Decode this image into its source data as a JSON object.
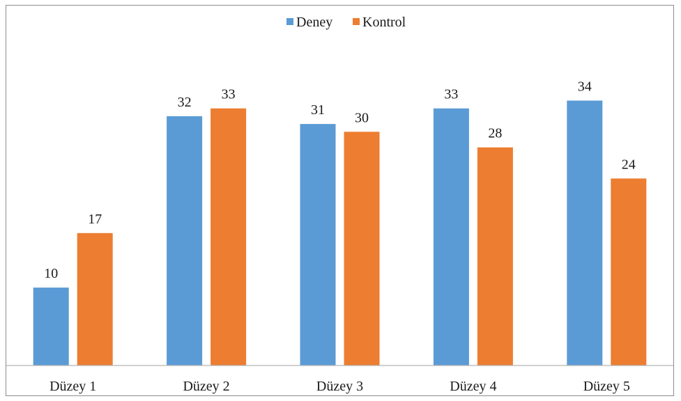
{
  "chart_data": {
    "type": "bar",
    "categories": [
      "Düzey 1",
      "Düzey 2",
      "Düzey 3",
      "Düzey 4",
      "Düzey 5"
    ],
    "series": [
      {
        "name": "Deney",
        "color": "#5b9bd5",
        "values": [
          10,
          32,
          31,
          33,
          34
        ]
      },
      {
        "name": "Kontrol",
        "color": "#ed7d31",
        "values": [
          17,
          33,
          30,
          28,
          24
        ]
      }
    ],
    "data_labels": {
      "Deney": [
        "10",
        "32",
        "31",
        "33",
        "34"
      ],
      "Kontrol": [
        "17",
        "33",
        "30",
        "28",
        "24"
      ]
    },
    "title": "",
    "xlabel": "",
    "ylabel": "",
    "ylim": [
      0,
      40
    ],
    "grid": false,
    "legend_position": "top-center"
  }
}
